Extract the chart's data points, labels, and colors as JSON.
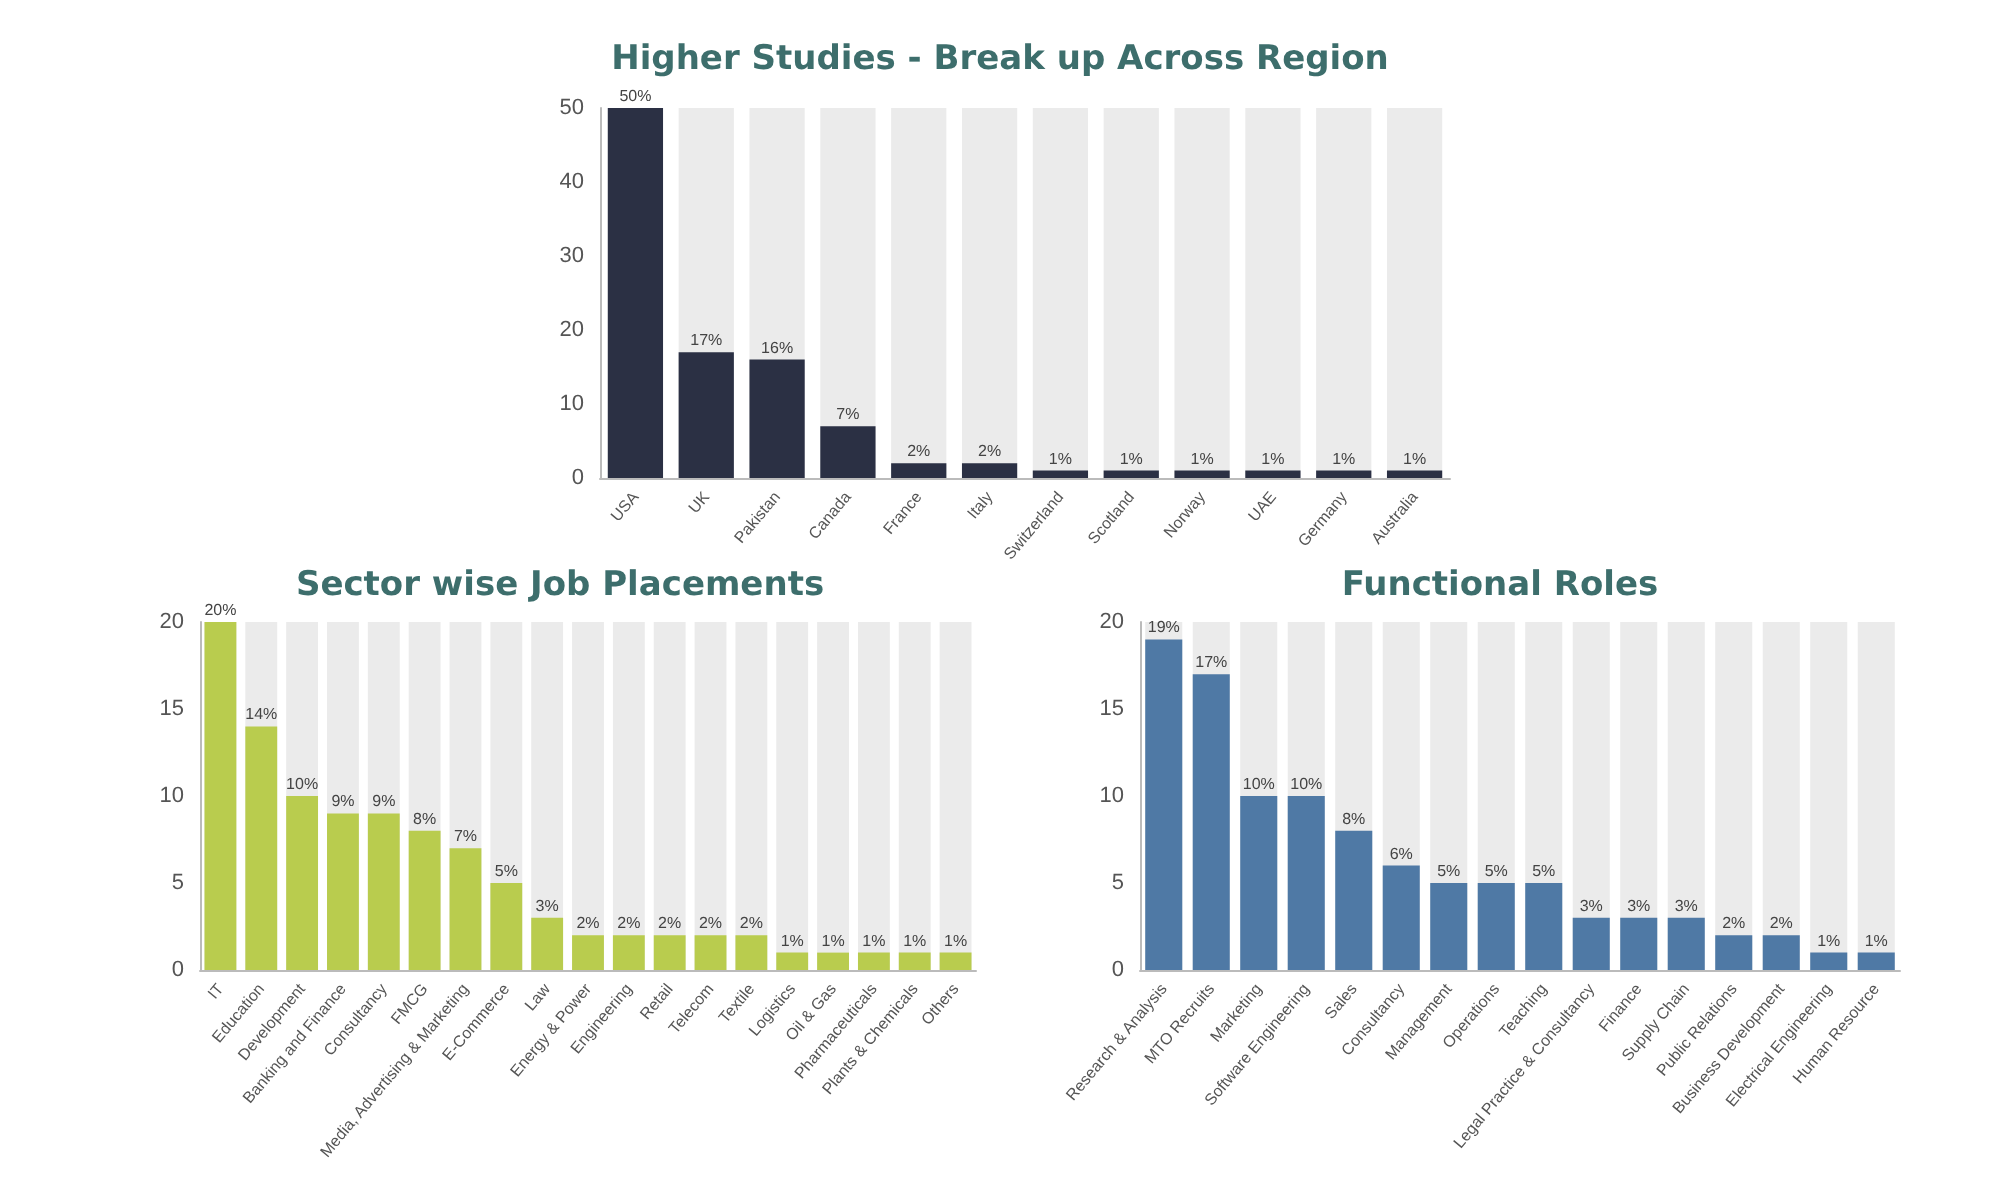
{
  "chart_data": [
    {
      "type": "bar",
      "title": "Higher Studies - Break up Across Region",
      "categories": [
        "USA",
        "UK",
        "Pakistan",
        "Canada",
        "France",
        "Italy",
        "Switzerland",
        "Scotland",
        "Norway",
        "UAE",
        "Germany",
        "Australia"
      ],
      "values": [
        50,
        17,
        16,
        7,
        2,
        2,
        1,
        1,
        1,
        1,
        1,
        1
      ],
      "value_labels": [
        "50%",
        "17%",
        "16%",
        "7%",
        "2%",
        "2%",
        "1%",
        "1%",
        "1%",
        "1%",
        "1%",
        "1%"
      ],
      "color": "#2b3044",
      "ylim": [
        0,
        50
      ],
      "yticks": [
        0,
        10,
        20,
        30,
        40,
        50
      ],
      "grid": false
    },
    {
      "type": "bar",
      "title": "Sector wise Job Placements",
      "categories": [
        "IT",
        "Education",
        "Development",
        "Banking and Finance",
        "Consultancy",
        "FMCG",
        "Media, Advertising & Marketing",
        "E-Commerce",
        "Law",
        "Energy & Power",
        "Engineering",
        "Retail",
        "Telecom",
        "Textile",
        "Logistics",
        "Oil & Gas",
        "Pharmaceuticals",
        "Plants & Chemicals",
        "Others"
      ],
      "values": [
        20,
        14,
        10,
        9,
        9,
        8,
        7,
        5,
        3,
        2,
        2,
        2,
        2,
        2,
        1,
        1,
        1,
        1,
        1
      ],
      "value_labels": [
        "20%",
        "14%",
        "10%",
        "9%",
        "9%",
        "8%",
        "7%",
        "5%",
        "3%",
        "2%",
        "2%",
        "2%",
        "2%",
        "2%",
        "1%",
        "1%",
        "1%",
        "1%",
        "1%"
      ],
      "color": "#b9cc4e",
      "ylim": [
        0,
        20
      ],
      "yticks": [
        0,
        5,
        10,
        15,
        20
      ],
      "grid": false
    },
    {
      "type": "bar",
      "title": "Functional Roles",
      "categories": [
        "Research & Analysis",
        "MTO Recruits",
        "Marketing",
        "Software Engineering",
        "Sales",
        "Consultancy",
        "Management",
        "Operations",
        "Teaching",
        "Legal Practice & Consultancy",
        "Finance",
        "Supply Chain",
        "Public Relations",
        "Business Development",
        "Electrical Engineering",
        "Human Resource"
      ],
      "values": [
        19,
        17,
        10,
        10,
        8,
        6,
        5,
        5,
        5,
        3,
        3,
        3,
        2,
        2,
        1,
        1
      ],
      "value_labels": [
        "19%",
        "17%",
        "10%",
        "10%",
        "8%",
        "6%",
        "5%",
        "5%",
        "5%",
        "3%",
        "3%",
        "3%",
        "2%",
        "2%",
        "1%",
        "1%"
      ],
      "color": "#4f79a5",
      "ylim": [
        0,
        20
      ],
      "yticks": [
        0,
        5,
        10,
        15,
        20
      ],
      "grid": false
    }
  ]
}
